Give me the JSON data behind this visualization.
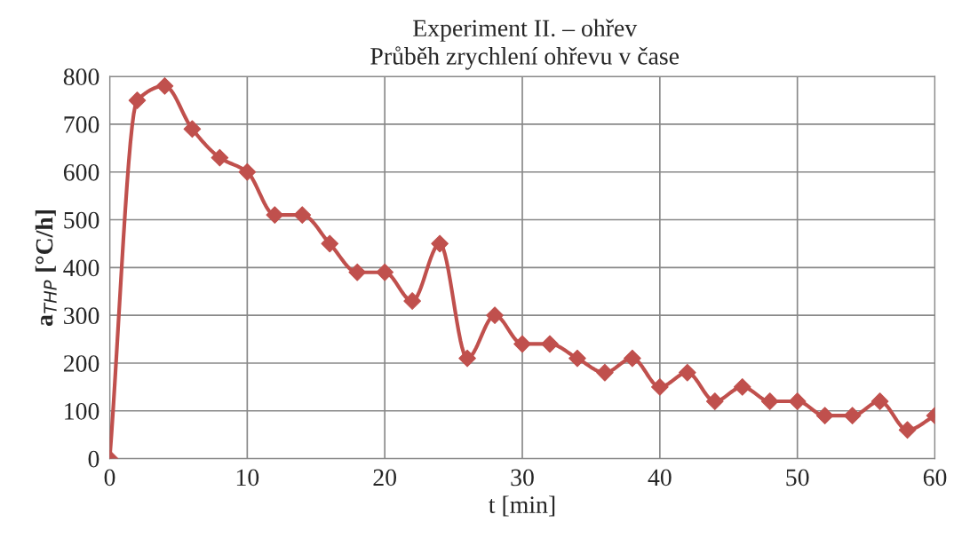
{
  "chart_data": {
    "type": "line",
    "title": "Experiment II. – ohřev",
    "subtitle": "Průběh zrychlení ohřevu v čase",
    "xlabel": "t [min]",
    "ylabel": "a$_{THP}$ [°C/h]",
    "x": [
      0,
      2,
      4,
      6,
      8,
      10,
      12,
      14,
      16,
      18,
      20,
      22,
      24,
      26,
      28,
      30,
      32,
      34,
      36,
      38,
      40,
      42,
      44,
      46,
      48,
      50,
      52,
      54,
      56,
      58,
      60
    ],
    "series": [
      {
        "color": "#c0504d",
        "values": [
          0,
          750,
          780,
          690,
          630,
          600,
          510,
          510,
          450,
          390,
          390,
          330,
          450,
          210,
          300,
          240,
          240,
          210,
          180,
          210,
          150,
          180,
          120,
          150,
          120,
          120,
          90,
          90,
          120,
          60,
          90
        ]
      }
    ],
    "xlim": [
      0,
      60
    ],
    "ylim": [
      0,
      800
    ],
    "xticks": [
      0,
      10,
      20,
      30,
      40,
      50,
      60
    ],
    "yticks": [
      0,
      100,
      200,
      300,
      400,
      500,
      600,
      700,
      800
    ],
    "grid": true,
    "marker": "diamond",
    "line_style": "solid",
    "legend": false
  }
}
